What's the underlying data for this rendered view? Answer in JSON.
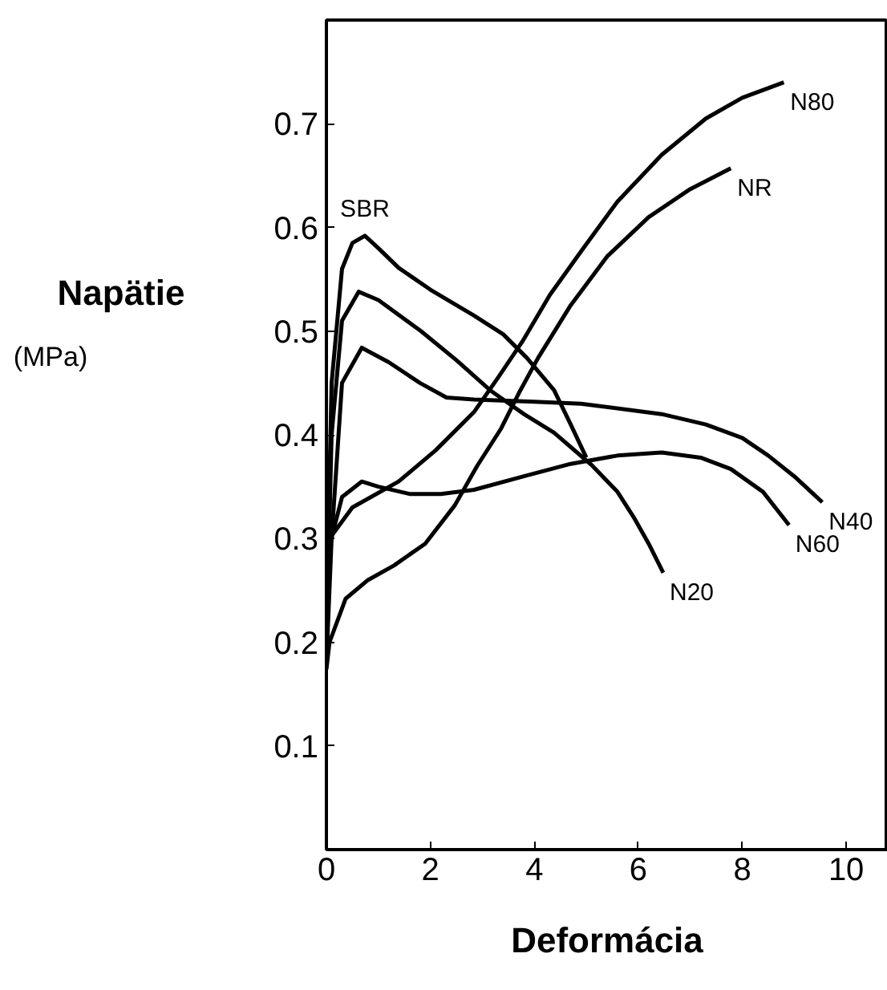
{
  "chart_data": {
    "type": "line",
    "xlabel": "Deformácia",
    "ylabel": "Napätie\n(MPa)",
    "xlim": [
      0,
      10.8
    ],
    "ylim": [
      0,
      0.8
    ],
    "xticks": [
      0,
      2,
      4,
      6,
      8,
      10
    ],
    "yticks": [
      0.1,
      0.2,
      0.3,
      0.4,
      0.5,
      0.6,
      0.7
    ],
    "grid": false,
    "series": [
      {
        "name": "SBR",
        "color": "#000000",
        "x": [
          0,
          0.1,
          0.3,
          0.5,
          0.74,
          1.0,
          1.39,
          2.0,
          2.84,
          3.4,
          3.86,
          4.38,
          4.7,
          5.0
        ],
        "values": [
          0.22,
          0.45,
          0.56,
          0.585,
          0.592,
          0.58,
          0.561,
          0.54,
          0.515,
          0.497,
          0.474,
          0.443,
          0.41,
          0.378
        ]
      },
      {
        "name": "N20",
        "color": "#000000",
        "x": [
          0,
          0.1,
          0.3,
          0.62,
          1.0,
          1.82,
          2.5,
          3.15,
          3.8,
          4.38,
          5.1,
          5.6,
          5.93,
          6.2,
          6.48
        ],
        "values": [
          0.2,
          0.4,
          0.51,
          0.538,
          0.53,
          0.5,
          0.472,
          0.443,
          0.42,
          0.402,
          0.371,
          0.345,
          0.319,
          0.295,
          0.267
        ]
      },
      {
        "name": "N40",
        "color": "#000000",
        "x": [
          0,
          0.1,
          0.3,
          0.68,
          1.2,
          1.8,
          2.31,
          2.84,
          4.0,
          4.9,
          6.45,
          7.3,
          8.0,
          8.5,
          9.0,
          9.54
        ],
        "values": [
          0.18,
          0.3,
          0.45,
          0.484,
          0.47,
          0.45,
          0.436,
          0.434,
          0.432,
          0.43,
          0.42,
          0.41,
          0.397,
          0.38,
          0.36,
          0.335
        ]
      },
      {
        "name": "N60",
        "color": "#000000",
        "x": [
          0,
          0.06,
          0.3,
          0.68,
          1.0,
          1.6,
          2.2,
          2.84,
          3.8,
          4.7,
          5.6,
          6.45,
          7.2,
          7.78,
          8.4,
          8.9
        ],
        "values": [
          0.23,
          0.293,
          0.34,
          0.355,
          0.35,
          0.343,
          0.343,
          0.347,
          0.36,
          0.372,
          0.38,
          0.383,
          0.378,
          0.367,
          0.345,
          0.313
        ]
      },
      {
        "name": "N80",
        "color": "#000000",
        "x": [
          0,
          0.06,
          0.5,
          1.39,
          2.1,
          2.84,
          3.3,
          3.77,
          4.3,
          4.9,
          5.6,
          6.45,
          7.3,
          8.0,
          8.8
        ],
        "values": [
          0.22,
          0.3,
          0.33,
          0.355,
          0.385,
          0.422,
          0.455,
          0.49,
          0.535,
          0.577,
          0.625,
          0.67,
          0.705,
          0.725,
          0.74
        ]
      },
      {
        "name": "NR",
        "color": "#000000",
        "x": [
          0,
          0.06,
          0.37,
          0.8,
          1.3,
          1.9,
          2.47,
          2.9,
          3.36,
          3.7,
          4.07,
          4.7,
          5.4,
          6.2,
          7.0,
          7.78
        ],
        "values": [
          0.174,
          0.2,
          0.242,
          0.26,
          0.274,
          0.295,
          0.332,
          0.37,
          0.406,
          0.44,
          0.474,
          0.525,
          0.572,
          0.61,
          0.637,
          0.657
        ]
      }
    ]
  }
}
